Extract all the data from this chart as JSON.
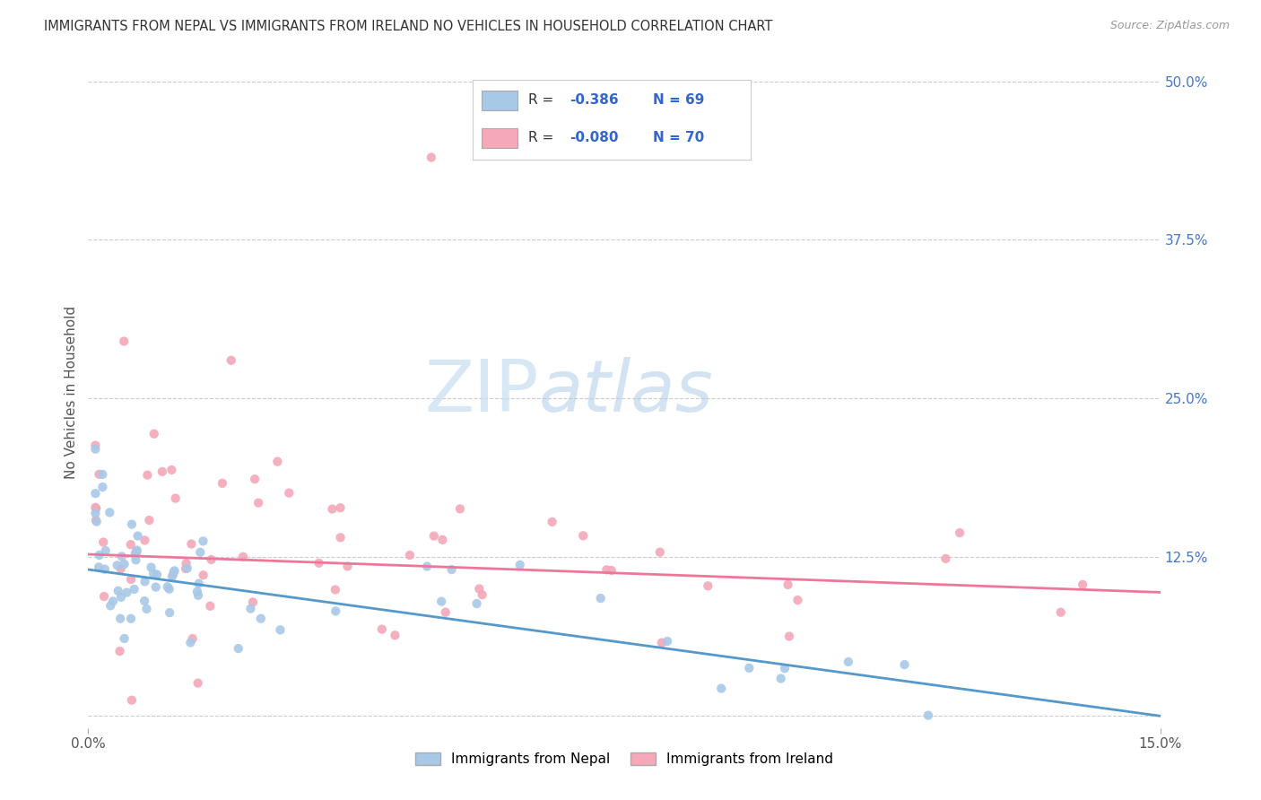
{
  "title": "IMMIGRANTS FROM NEPAL VS IMMIGRANTS FROM IRELAND NO VEHICLES IN HOUSEHOLD CORRELATION CHART",
  "source": "Source: ZipAtlas.com",
  "ylabel": "No Vehicles in Household",
  "legend_nepal_r_val": "-0.386",
  "legend_nepal_n": "69",
  "legend_ireland_r_val": "-0.080",
  "legend_ireland_n": "70",
  "nepal_color": "#a8c8e8",
  "ireland_color": "#f4a8b8",
  "nepal_line_color": "#5599cc",
  "ireland_line_color": "#ee7799",
  "background_color": "#ffffff",
  "right_ytick_vals": [
    0.5,
    0.375,
    0.25,
    0.125
  ],
  "xlim": [
    0.0,
    0.15
  ],
  "ylim": [
    -0.01,
    0.52
  ],
  "watermark1": "ZIP",
  "watermark2": "atlas"
}
